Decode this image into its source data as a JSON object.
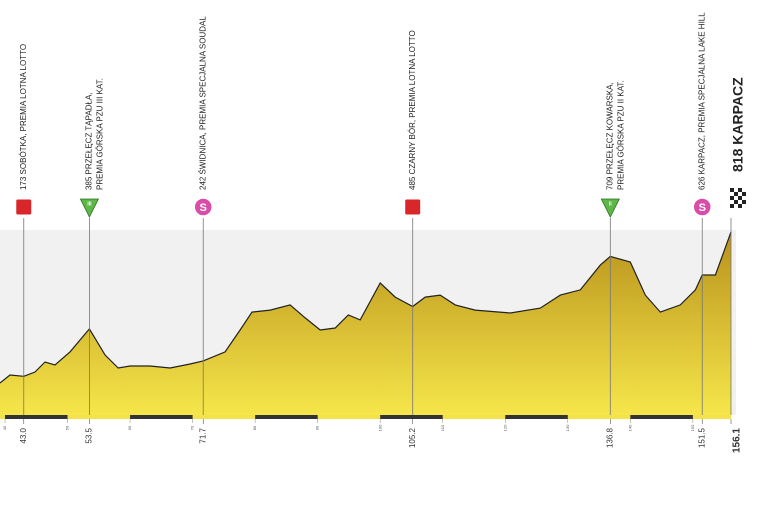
{
  "chart_data": {
    "type": "area",
    "x": [
      39.2,
      40.8,
      43.0,
      44.8,
      46.4,
      48.0,
      50.4,
      53.5,
      56.0,
      58.1,
      60.0,
      63.2,
      66.4,
      69.6,
      71.7,
      75.2,
      77.6,
      79.5,
      82.4,
      85.6,
      88.0,
      90.4,
      92.8,
      94.9,
      96.8,
      100.0,
      102.4,
      105.2,
      107.2,
      109.6,
      112.0,
      115.2,
      120.8,
      125.6,
      128.8,
      132.0,
      135.2,
      136.8,
      140.0,
      142.4,
      144.8,
      148.0,
      150.4,
      151.5,
      153.6,
      156.1
    ],
    "values": [
      143,
      179,
      173,
      192,
      237,
      224,
      282,
      385,
      268,
      210,
      219,
      219,
      210,
      228,
      242,
      282,
      380,
      460,
      469,
      492,
      434,
      380,
      389,
      447,
      425,
      590,
      527,
      485,
      527,
      536,
      492,
      469,
      456,
      478,
      536,
      559,
      670,
      709,
      684,
      536,
      460,
      492,
      559,
      626,
      626,
      818
    ],
    "xlim": [
      39.2,
      156.1
    ],
    "ylim": [
      0,
      818
    ],
    "xticks": [
      {
        "value": 43,
        "label": "43.0"
      },
      53.5,
      71.7,
      105.2,
      136.8,
      151.5,
      156.1
    ],
    "minor_xticks": [
      40,
      50,
      60,
      70,
      80,
      90,
      100,
      110,
      120,
      130,
      140,
      150
    ],
    "points": [
      {
        "km": 43.0,
        "icon": "sprint",
        "lines": [
          "173  SOBÓTKA, PREMIA LOTNA LOTTO"
        ]
      },
      {
        "km": 53.5,
        "icon": "mountain",
        "badge": "III",
        "lines": [
          "385  PRZEŁĘCZ TĄPADŁA,",
          "PREMIA GÓRSKA PZU III KAT."
        ]
      },
      {
        "km": 71.7,
        "icon": "special",
        "badge": "S",
        "lines": [
          "242  ŚWIDNICA, PREMIA SPECJALNA SOUDAL"
        ]
      },
      {
        "km": 105.2,
        "icon": "sprint",
        "lines": [
          "485  CZARNY BÓR, PREMIA LOTNA LOTTO"
        ]
      },
      {
        "km": 136.8,
        "icon": "mountain",
        "badge": "II",
        "lines": [
          "709  PRZEŁĘCZ KOWARSKA,",
          "PREMIA GÓRSKA PZU II KAT."
        ]
      },
      {
        "km": 151.5,
        "icon": "special",
        "badge": "S",
        "lines": [
          "626  KARPACZ, PREMIA SPECJALNA LAKE HILL"
        ]
      },
      {
        "km": 156.1,
        "icon": "finish",
        "lines": [
          "818  KARPACZ"
        ]
      }
    ]
  }
}
